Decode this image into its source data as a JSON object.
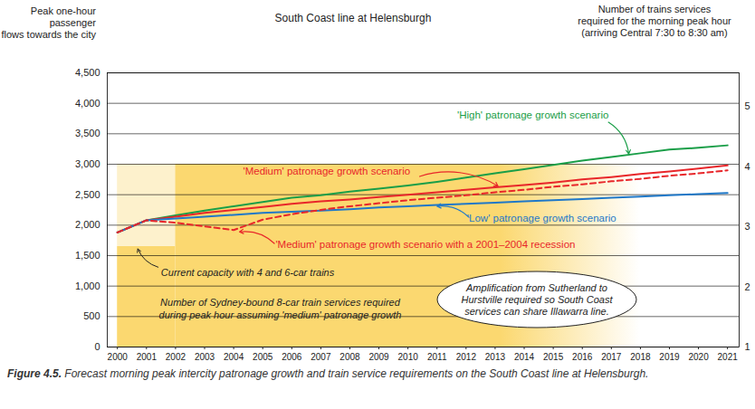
{
  "chart_data": {
    "type": "line",
    "title": "South Coast line at Helensburgh",
    "y_label": "Peak one-hour passenger\nflows towards the city",
    "y2_label": "Number of trains services\nrequired for the morning peak hour\n(arriving Central 7:30 to 8:30 am)",
    "x": [
      2000,
      2001,
      2002,
      2003,
      2004,
      2005,
      2006,
      2007,
      2008,
      2009,
      2010,
      2011,
      2012,
      2013,
      2014,
      2015,
      2016,
      2017,
      2018,
      2019,
      2020,
      2021
    ],
    "xlim": [
      1999.65,
      2021.4
    ],
    "xticks": [
      2000,
      2001,
      2002,
      2003,
      2004,
      2005,
      2006,
      2007,
      2008,
      2009,
      2010,
      2011,
      2012,
      2013,
      2014,
      2015,
      2016,
      2017,
      2018,
      2019,
      2020,
      2021
    ],
    "ylim": [
      0,
      4500
    ],
    "yticks": [
      0,
      500,
      {
        "value": 1000,
        "label": "1,000"
      },
      {
        "value": 1500,
        "label": "1,500"
      },
      {
        "value": 2000,
        "label": "2,000"
      },
      {
        "value": 2500,
        "label": "2,500"
      },
      {
        "value": 3000,
        "label": "3,000"
      },
      {
        "value": 3500,
        "label": "3,500"
      },
      {
        "value": 4000,
        "label": "4,000"
      },
      {
        "value": 4500,
        "label": "4,500"
      }
    ],
    "y2lim": [
      1,
      5.56
    ],
    "y2ticks": [
      1,
      2,
      3,
      4,
      5
    ],
    "grid": true,
    "series": [
      {
        "name": "'High' patronage growth scenario",
        "color": "#1a9e48",
        "line_style": "solid",
        "values": [
          1880,
          2080,
          2160,
          2240,
          2310,
          2380,
          2450,
          2490,
          2550,
          2600,
          2650,
          2710,
          2780,
          2850,
          2920,
          2990,
          3060,
          3120,
          3180,
          3240,
          3270,
          3310
        ]
      },
      {
        "name": "'Medium' patronage growth scenario",
        "color": "#e8262a",
        "line_style": "solid",
        "values": [
          1880,
          2080,
          2140,
          2200,
          2250,
          2300,
          2350,
          2390,
          2420,
          2460,
          2500,
          2540,
          2580,
          2620,
          2660,
          2700,
          2750,
          2790,
          2840,
          2880,
          2930,
          2980
        ]
      },
      {
        "name": "'Low' patronage growth scenario",
        "color": "#1f78c8",
        "line_style": "solid",
        "values": [
          1880,
          2080,
          2110,
          2140,
          2170,
          2200,
          2220,
          2240,
          2260,
          2290,
          2310,
          2330,
          2350,
          2370,
          2390,
          2410,
          2430,
          2450,
          2470,
          2490,
          2510,
          2530
        ]
      },
      {
        "name": "'Medium' patronage growth scenario with a 2001–2004 recession",
        "color": "#e8262a",
        "line_style": "dashed",
        "values": [
          1880,
          2080,
          2040,
          1980,
          1920,
          2090,
          2180,
          2250,
          2310,
          2360,
          2410,
          2450,
          2490,
          2540,
          2580,
          2630,
          2670,
          2720,
          2760,
          2810,
          2850,
          2900
        ]
      }
    ],
    "shaded_areas": [
      {
        "x": [
          2000,
          2002
        ],
        "y": [
          0,
          1650
        ],
        "color": "#fbd870"
      },
      {
        "x": [
          2000,
          2002
        ],
        "y": [
          1650,
          3000
        ],
        "color": "#fdf1cc"
      },
      {
        "x": [
          2002,
          2018
        ],
        "y": [
          0,
          3000
        ],
        "color": "#fbd870"
      }
    ],
    "annotations": [
      {
        "text": "Current capacity with 4 and 6-car trains"
      },
      {
        "text": "Number of Sydney-bound 8-car train services required\nduring peak hour assuming 'medium' patronage growth"
      }
    ],
    "note": "Amplification from Sutherland to\nHurstville required so South Coast\nservices can share Illawarra line.",
    "figure_label": "Figure 4.5.",
    "caption": "Forecast morning peak intercity patronage growth and train service requirements on the South Coast line at Helensburgh."
  }
}
